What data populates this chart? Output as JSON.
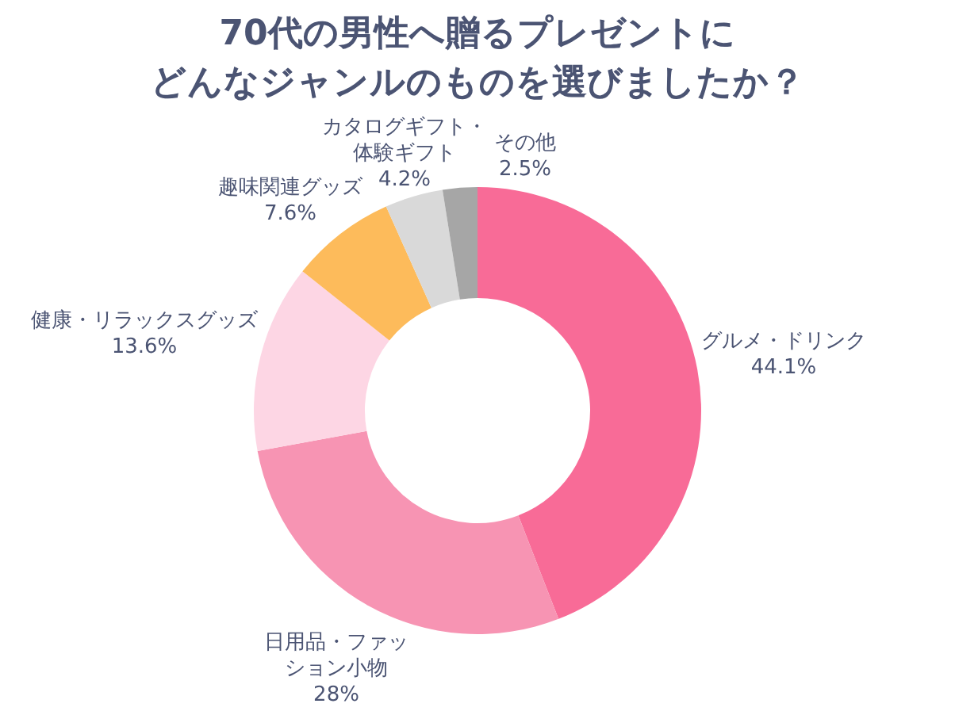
{
  "chart_data": {
    "type": "donut",
    "title": "70代の男性へ贈るプレゼントにどんなジャンルのものを選びましたか？",
    "categories": [
      "グルメ・ドリンク",
      "日用品・ファッション小物",
      "健康・リラックスグッズ",
      "趣味関連グッズ",
      "カタログギフト・体験ギフト",
      "その他"
    ],
    "values": [
      44.1,
      28,
      13.6,
      7.6,
      4.2,
      2.5
    ],
    "colors": [
      "#f86b97",
      "#f794b3",
      "#fdd6e4",
      "#fdbb5b",
      "#d9d9d9",
      "#a6a6a6"
    ],
    "value_labels": [
      "44.1%",
      "28%",
      "13.6%",
      "7.6%",
      "4.2%",
      "2.5%"
    ]
  }
}
